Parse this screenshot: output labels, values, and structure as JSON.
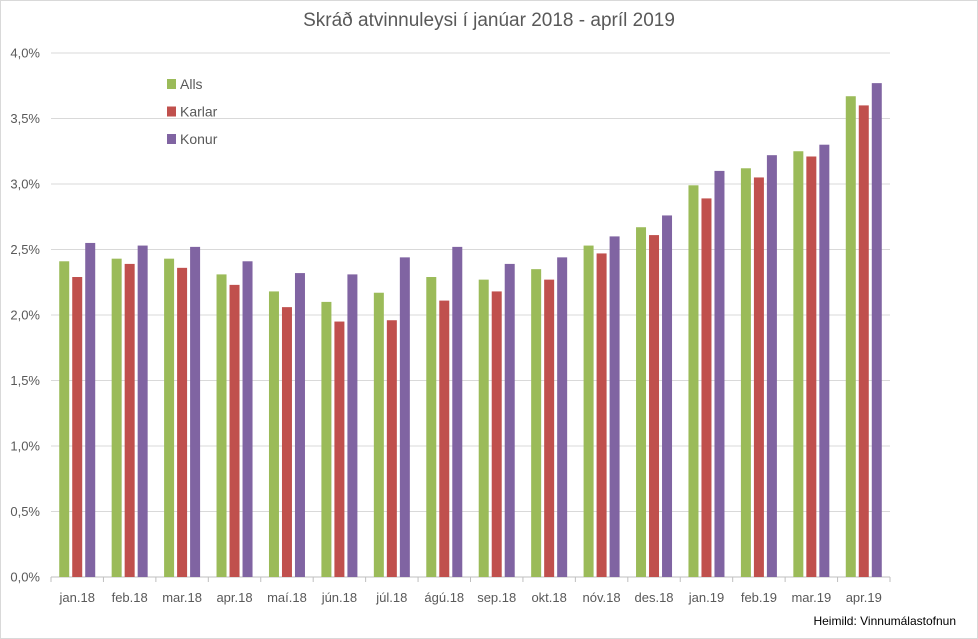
{
  "chart_data": {
    "type": "bar",
    "title": "Skráð atvinnuleysi í janúar 2018 - apríl 2019",
    "source": "Heimild: Vinnumálastofnun",
    "categories": [
      "jan.18",
      "feb.18",
      "mar.18",
      "apr.18",
      "maí.18",
      "jún.18",
      "júl.18",
      "ágú.18",
      "sep.18",
      "okt.18",
      "nóv.18",
      "des.18",
      "jan.19",
      "feb.19",
      "mar.19",
      "apr.19"
    ],
    "series": [
      {
        "name": "Alls",
        "color": "#9BBB59",
        "values": [
          2.41,
          2.43,
          2.43,
          2.31,
          2.18,
          2.1,
          2.17,
          2.29,
          2.27,
          2.35,
          2.53,
          2.67,
          2.99,
          3.12,
          3.25,
          3.67
        ]
      },
      {
        "name": "Karlar",
        "color": "#C0504D",
        "values": [
          2.29,
          2.39,
          2.36,
          2.23,
          2.06,
          1.95,
          1.96,
          2.11,
          2.18,
          2.27,
          2.47,
          2.61,
          2.89,
          3.05,
          3.21,
          3.6
        ]
      },
      {
        "name": "Konur",
        "color": "#8064A2",
        "values": [
          2.55,
          2.53,
          2.52,
          2.41,
          2.32,
          2.31,
          2.44,
          2.52,
          2.39,
          2.44,
          2.6,
          2.76,
          3.1,
          3.22,
          3.3,
          3.77
        ]
      }
    ],
    "ylim": [
      0,
      4.0
    ],
    "yticks": [
      "0,0%",
      "0,5%",
      "1,0%",
      "1,5%",
      "2,0%",
      "2,5%",
      "3,0%",
      "3,5%",
      "4,0%"
    ],
    "ystep": 0.5,
    "grid": true,
    "legend_position": "top-left inside"
  }
}
